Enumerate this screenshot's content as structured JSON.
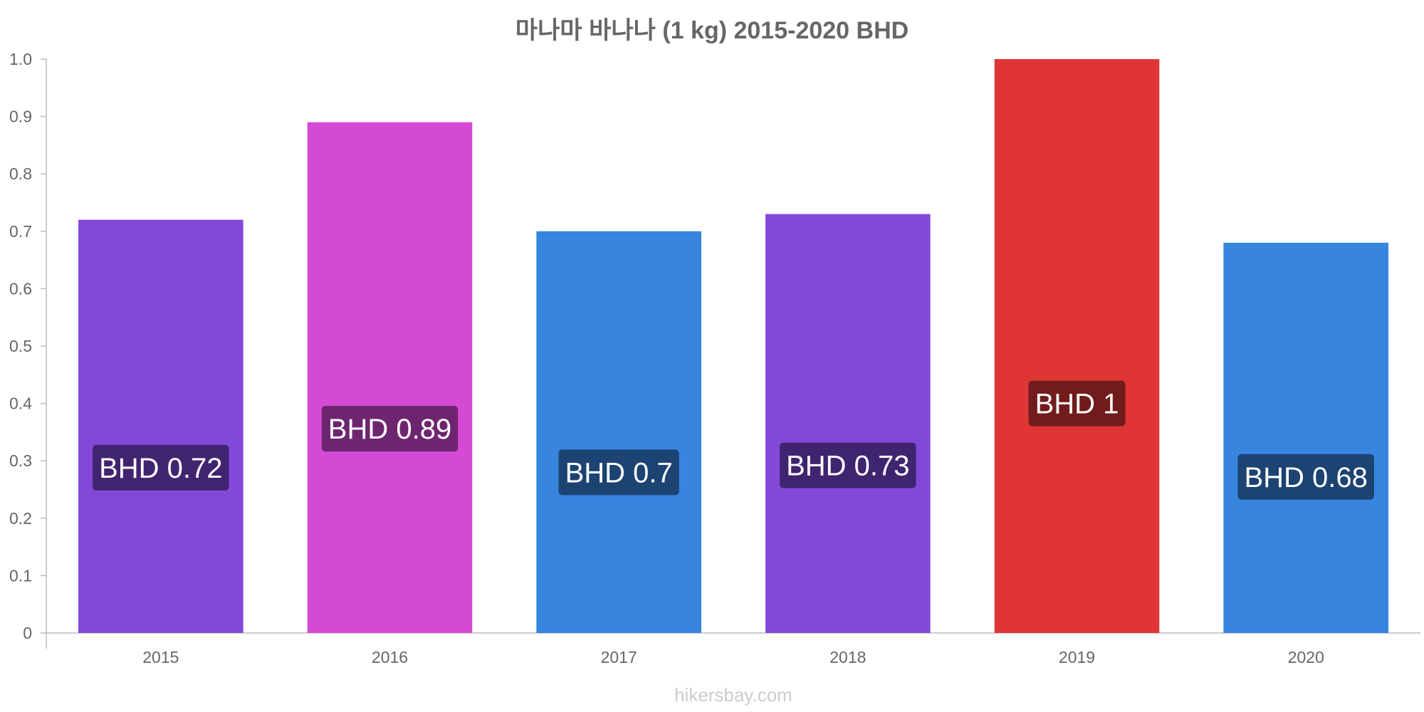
{
  "chart_data": {
    "type": "bar",
    "title": "마나마 바나나 (1 kg) 2015-2020 BHD",
    "xlabel": "",
    "ylabel": "",
    "categories": [
      "2015",
      "2016",
      "2017",
      "2018",
      "2019",
      "2020"
    ],
    "values": [
      0.72,
      0.89,
      0.7,
      0.73,
      1.0,
      0.68
    ],
    "data_labels": [
      "BHD 0.72",
      "BHD 0.89",
      "BHD 0.7",
      "BHD 0.73",
      "BHD 1",
      "BHD 0.68"
    ],
    "bar_colors": [
      "#8249d9",
      "#d54ad5",
      "#3785df",
      "#8249d9",
      "#e03535",
      "#3785df"
    ],
    "label_bg_colors": [
      "#412470",
      "#6e2570",
      "#1c4371",
      "#412470",
      "#711c1c",
      "#1c4371"
    ],
    "ylim": [
      0,
      1.0
    ],
    "y_ticks": [
      "0",
      "0.1",
      "0.2",
      "0.3",
      "0.4",
      "0.5",
      "0.6",
      "0.7",
      "0.8",
      "0.9",
      "1.0"
    ],
    "grid": false,
    "legend": "none"
  },
  "watermark": "hikersbay.com"
}
